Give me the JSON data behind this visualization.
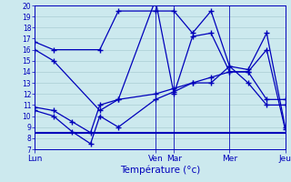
{
  "xlabel": "Température (°c)",
  "ylim": [
    7,
    20
  ],
  "yticks": [
    7,
    8,
    9,
    10,
    11,
    12,
    13,
    14,
    15,
    16,
    17,
    18,
    19,
    20
  ],
  "day_labels": [
    "Lun",
    "Ven",
    "Mar",
    "Mer",
    "Jeu"
  ],
  "day_positions": [
    0,
    13,
    15,
    21,
    27
  ],
  "xlim": [
    0,
    27
  ],
  "background_color": "#cce9ee",
  "grid_color": "#aacdd4",
  "line_color": "#0000bb",
  "series": [
    {
      "x": [
        0,
        2,
        7,
        9,
        13,
        15,
        17,
        19,
        21,
        23,
        25,
        27
      ],
      "y": [
        16.7,
        16.0,
        16.0,
        19.5,
        19.5,
        19.5,
        17.5,
        19.5,
        14.5,
        14.2,
        17.5,
        9.0
      ]
    },
    {
      "x": [
        0,
        2,
        7,
        9,
        13,
        15,
        17,
        19,
        21,
        23,
        25,
        27
      ],
      "y": [
        16.0,
        15.0,
        10.5,
        11.5,
        20.5,
        12.0,
        17.2,
        17.5,
        14.0,
        14.0,
        16.0,
        8.8
      ]
    },
    {
      "x": [
        0,
        2,
        4,
        6,
        7,
        9,
        13,
        15,
        17,
        19,
        21,
        23,
        25,
        27
      ],
      "y": [
        10.5,
        10.0,
        8.6,
        7.5,
        10.0,
        9.0,
        11.5,
        12.2,
        13.0,
        13.0,
        14.5,
        13.0,
        11.0,
        11.0
      ]
    },
    {
      "x": [
        0,
        2,
        4,
        6,
        7,
        9,
        13,
        15,
        17,
        19,
        21,
        23,
        25,
        27
      ],
      "y": [
        10.8,
        10.5,
        9.5,
        8.5,
        11.0,
        11.5,
        12.0,
        12.5,
        13.0,
        13.5,
        14.0,
        14.0,
        11.5,
        11.5
      ]
    },
    {
      "x": [
        0,
        13,
        21,
        27
      ],
      "y": [
        8.5,
        8.5,
        8.5,
        8.5
      ]
    }
  ]
}
